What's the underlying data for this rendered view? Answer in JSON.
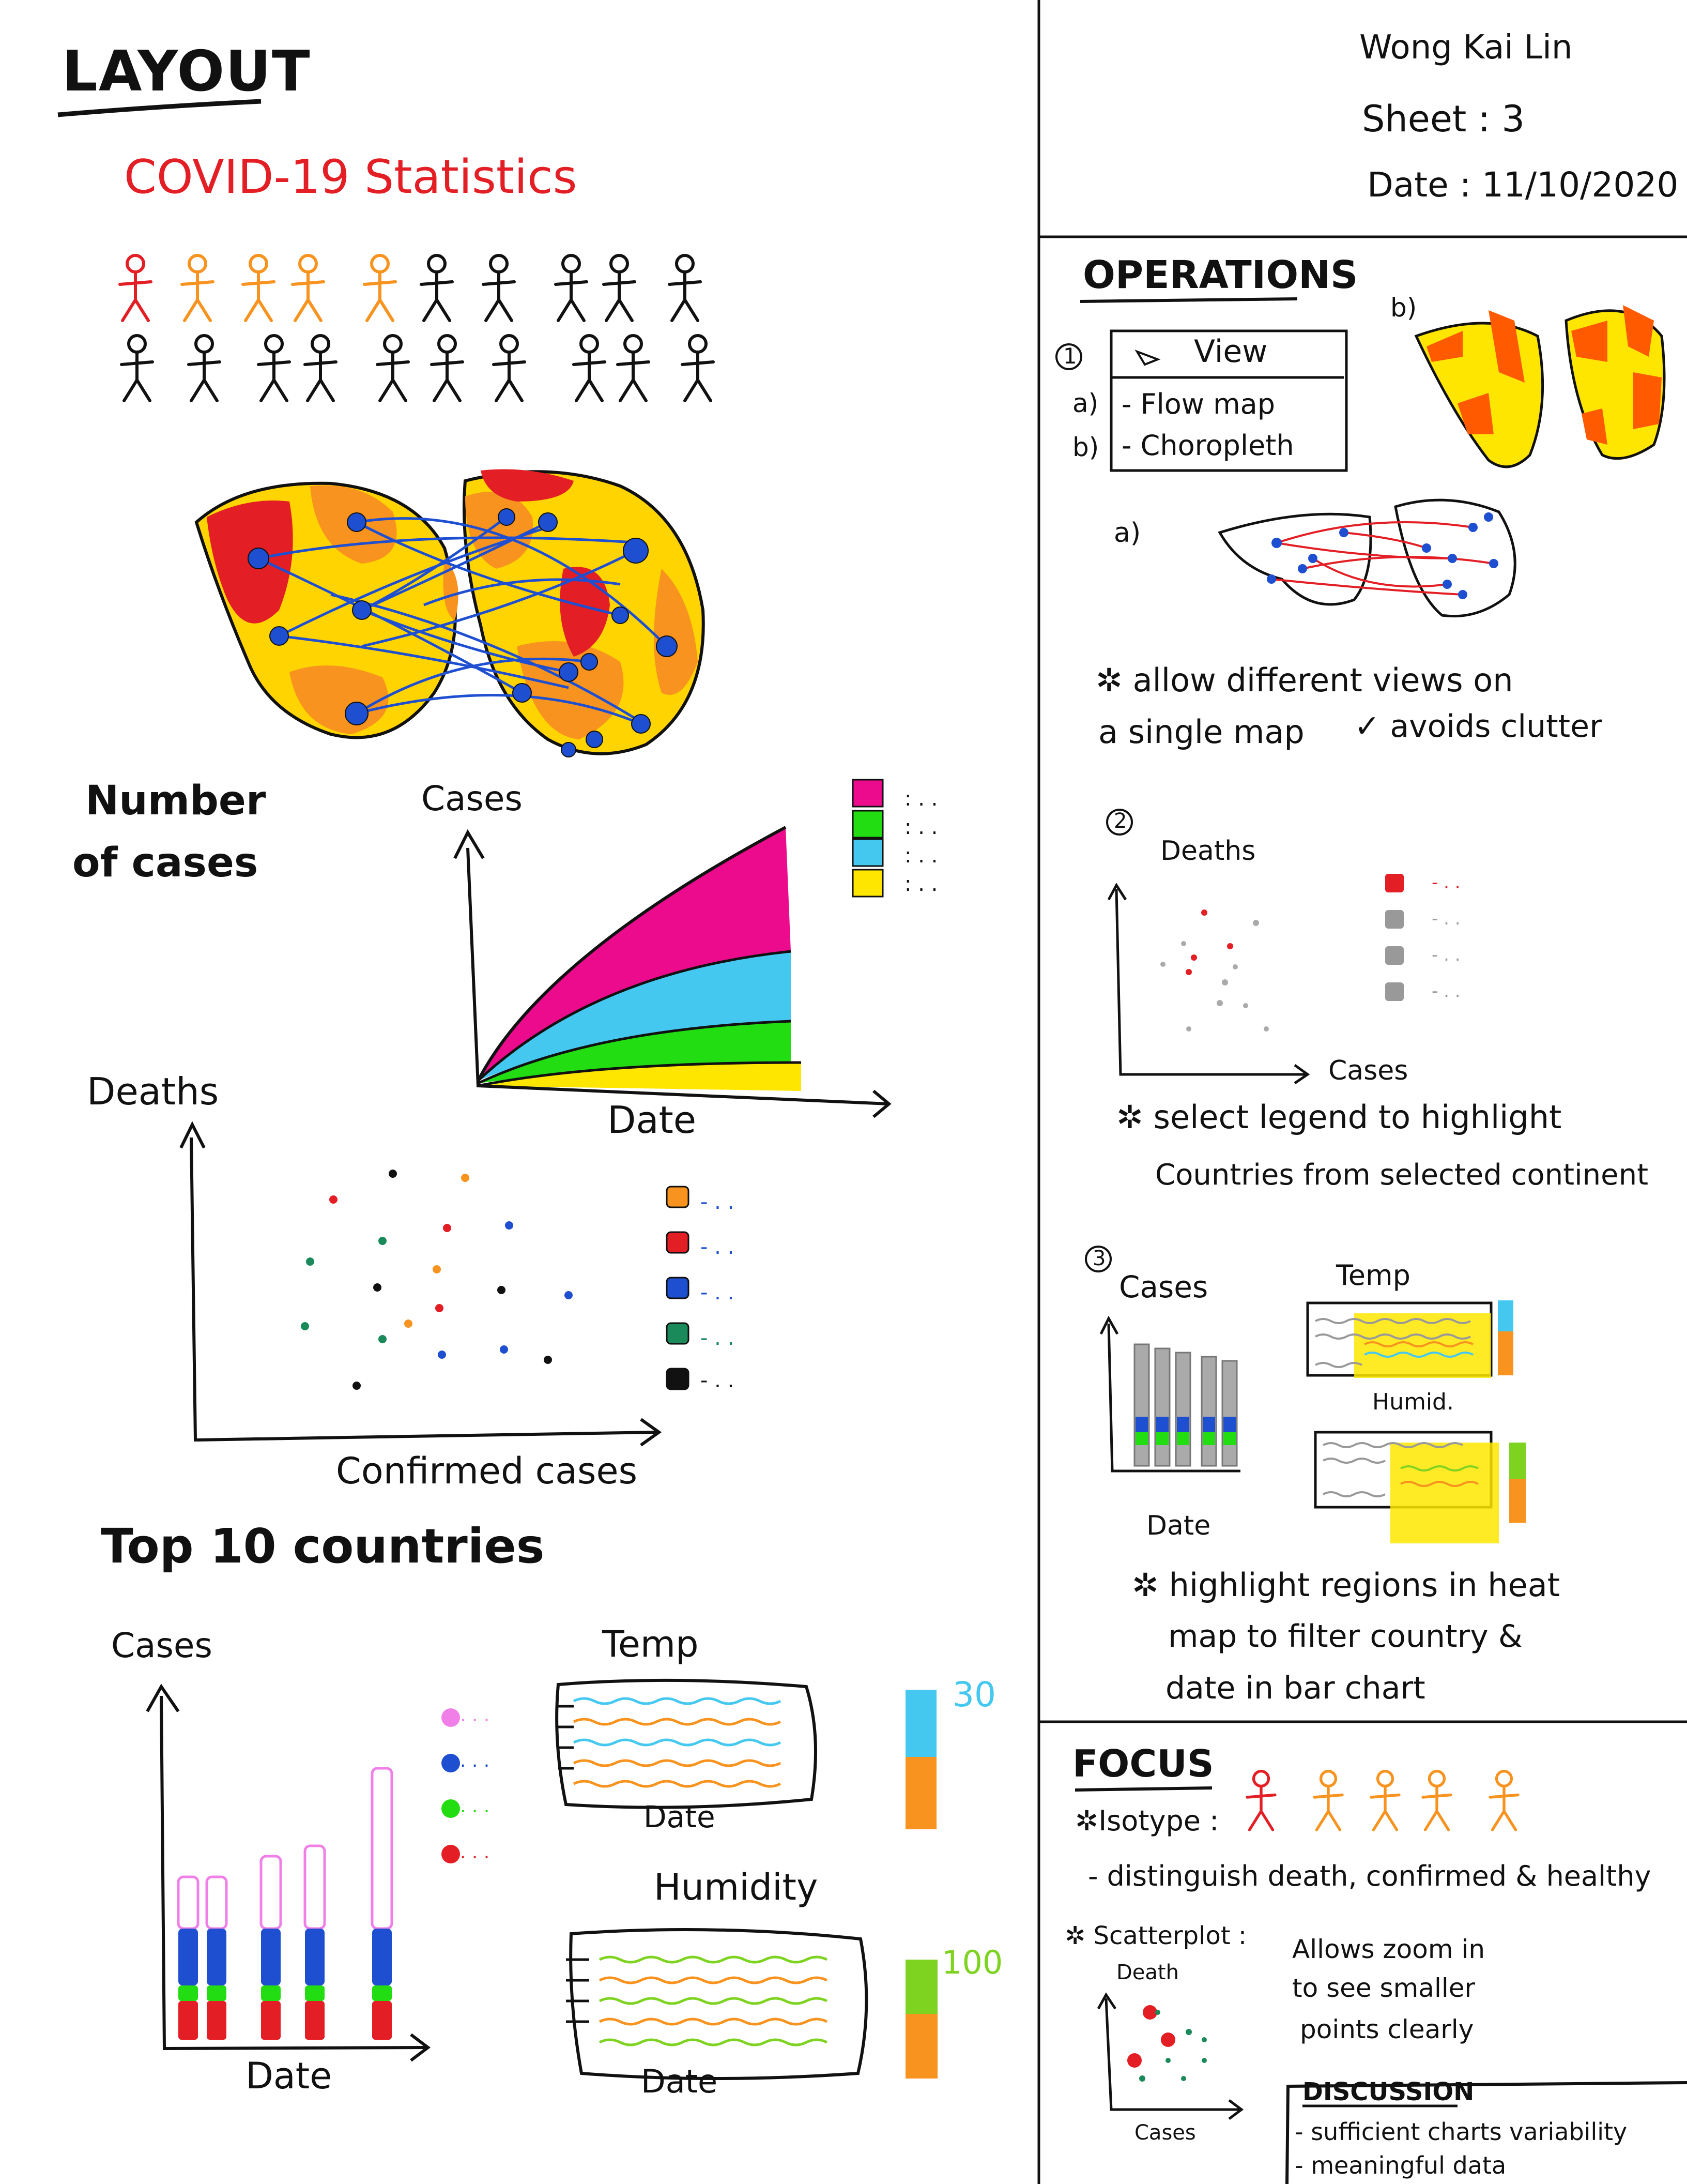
{
  "header": {
    "layout_title": "LAYOUT",
    "author": "Wong Kai Lin",
    "sheet": "Sheet : 3",
    "date": "Date : 11/10/2020"
  },
  "layout": {
    "covid_title": "COVID-19 Statistics",
    "number_of_cases_line1": "Number",
    "number_of_cases_line2": "of cases",
    "area_ylabel": "Cases",
    "area_xlabel": "Date",
    "area_legend_dots": ": . .",
    "scatter_ylabel": "Deaths",
    "scatter_xlabel": "Confirmed cases",
    "scatter_legend_dots": "- . .",
    "top10_title": "Top 10 countries",
    "bar_ylabel": "Cases",
    "bar_xlabel": "Date",
    "bar_legend_dots": ". . .",
    "heat1_title": "Temp",
    "heat1_xlabel": "Date",
    "heat1_scale_max": "30",
    "heat2_title": "Humidity",
    "heat2_xlabel": "Date",
    "heat2_scale_max": "100"
  },
  "operations": {
    "title": "OPERATIONS",
    "op1_num": "1",
    "menu_header": "View",
    "menu_item_a_marker": "a)",
    "menu_item_a": "- Flow map",
    "menu_item_b_marker": "b)",
    "menu_item_b": "- Choropleth",
    "label_b": "b)",
    "label_a": "a)",
    "note1_line1": "allow different views on",
    "note1_line2": "a single map",
    "note1_check": "avoids clutter",
    "op2_num": "2",
    "op2_ylabel": "Deaths",
    "op2_xlabel": "Cases",
    "op2_legend_dots": "- . .",
    "note2_line1": "select legend to highlight",
    "note2_line2": "Countries from selected continent",
    "op3_num": "3",
    "op3_ylabel": "Cases",
    "op3_xlabel": "Date",
    "op3_heat1_title": "Temp",
    "op3_heat2_title": "Humid.",
    "note3_line1": "highlight regions in heat",
    "note3_line2": "map to filter country &",
    "note3_line3": "date in bar chart"
  },
  "focus": {
    "title": "FOCUS",
    "isotype_label": "Isotype :",
    "isotype_note": "- distinguish death, confirmed & healthy",
    "scatter_label": "Scatterplot :",
    "scatter_ylabel": "Death",
    "scatter_xlabel": "Cases",
    "zoom_note_line1": "Allows zoom in",
    "zoom_note_line2": "to see smaller",
    "zoom_note_line3": "points clearly"
  },
  "discussion": {
    "title": "DISCUSSION",
    "item1": "- sufficient charts variability",
    "item2": "- meaningful data"
  },
  "colors": {
    "red": "#e31e24",
    "orange": "#f7931e",
    "yellow": "#ffe600",
    "blue": "#1f4fd1",
    "magenta": "#ec0b8d",
    "lightblue": "#45c8f0",
    "green": "#22dd11",
    "pink": "#f080e8"
  }
}
